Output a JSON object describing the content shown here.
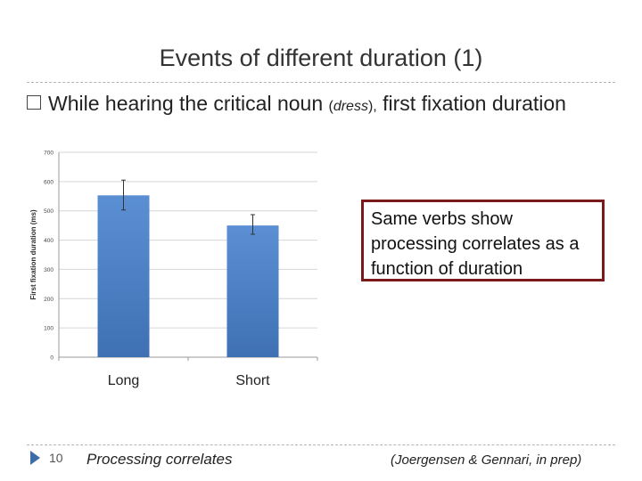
{
  "slide": {
    "title": "Events of different duration (1)",
    "bullet": {
      "lead": "While hearing the critical noun",
      "noun_open": "(",
      "noun": "dress",
      "noun_close": "),",
      "rest": "first fixation duration"
    },
    "callout": "Same verbs show processing correlates as a function of duration",
    "page_number": "10",
    "footer_left": "Processing correlates",
    "footer_right": "(Joergensen & Gennari, in prep)"
  },
  "colors": {
    "bar": "#5b8fd4",
    "callout_border": "#7a1a1a",
    "accent": "#3e6da8"
  },
  "chart_data": {
    "type": "bar",
    "title": "",
    "xlabel": "",
    "ylabel": "First fixation duration (ms)",
    "ylim": [
      0,
      700
    ],
    "yticks": [
      0,
      100,
      200,
      300,
      400,
      500,
      600,
      700
    ],
    "categories": [
      "Long",
      "Short"
    ],
    "values": [
      553,
      450
    ],
    "error_low": [
      503,
      420
    ],
    "error_high": [
      605,
      487
    ],
    "grid": true,
    "legend": "none"
  }
}
